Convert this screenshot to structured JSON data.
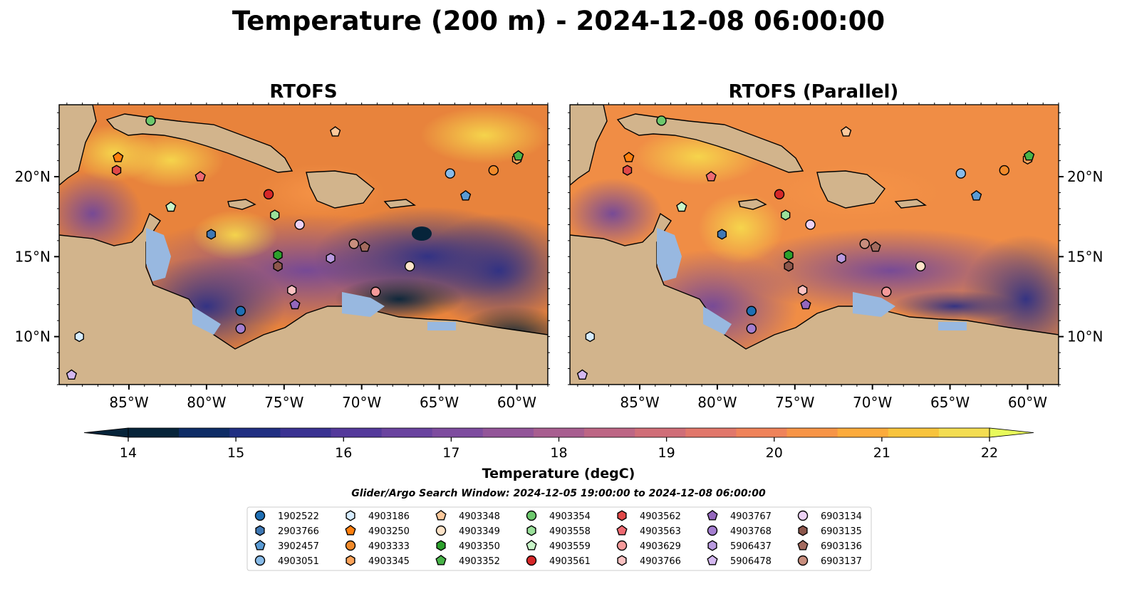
{
  "title": "Temperature (200 m) - 2024-12-08 06:00:00",
  "colorbar": {
    "label": "Temperature (degC)",
    "min": 14,
    "max": 22,
    "step": 0.5,
    "ticks": [
      "14",
      "15",
      "16",
      "17",
      "18",
      "19",
      "20",
      "21",
      "22"
    ],
    "colors": [
      "#06243a",
      "#0e2c66",
      "#202f82",
      "#3a3292",
      "#54399b",
      "#6a439f",
      "#7e4c9f",
      "#935599",
      "#a85e90",
      "#bd6685",
      "#d06e78",
      "#e1776b",
      "#ef835a",
      "#f79547",
      "#fcab3c",
      "#f8c43d",
      "#f3dd52"
    ],
    "under_color": "#06243a",
    "over_color": "#e8fa5b"
  },
  "search_window": "Glider/Argo Search Window: 2024-12-05 19:00:00 to 2024-12-08 06:00:00",
  "colors": {
    "land": "#d2b48c",
    "shelf": "#98b8e0",
    "deep": "#06243a"
  },
  "chart_data": [
    {
      "type": "heatmap",
      "title": "RTOFS",
      "xlim": [
        -89.5,
        -58.0
      ],
      "ylim": [
        7.0,
        24.5
      ],
      "x_ticks": [
        "85°W",
        "80°W",
        "75°W",
        "70°W",
        "65°W",
        "60°W"
      ],
      "y_ticks": [
        "10°N",
        "15°N",
        "20°N"
      ],
      "y_ticks_side": "left",
      "variant": "rtofs"
    },
    {
      "type": "heatmap",
      "title": "RTOFS (Parallel)",
      "xlim": [
        -89.5,
        -58.0
      ],
      "ylim": [
        7.0,
        24.5
      ],
      "x_ticks": [
        "85°W",
        "80°W",
        "75°W",
        "70°W",
        "65°W",
        "60°W"
      ],
      "y_ticks": [
        "10°N",
        "15°N",
        "20°N"
      ],
      "y_ticks_side": "right",
      "variant": "parallel"
    }
  ],
  "platforms": [
    {
      "id": "1902522",
      "marker": "circle",
      "color": "#1f6fb4",
      "lon": -77.8,
      "lat": 11.6
    },
    {
      "id": "2903766",
      "marker": "hexagon",
      "color": "#3f78b4",
      "lon": -79.7,
      "lat": 16.4
    },
    {
      "id": "3902457",
      "marker": "pentagon",
      "color": "#5a9bd4",
      "lon": -63.3,
      "lat": 18.8
    },
    {
      "id": "4903051",
      "marker": "circle",
      "color": "#88bbe8",
      "lon": -64.3,
      "lat": 20.2
    },
    {
      "id": "4903186",
      "marker": "hexagon",
      "color": "#d6ecff",
      "lon": -88.2,
      "lat": 10.0
    },
    {
      "id": "4903250",
      "marker": "pentagon",
      "color": "#ff7f0e",
      "lon": -85.7,
      "lat": 21.2
    },
    {
      "id": "4903333",
      "marker": "circle",
      "color": "#f08a2a",
      "lon": -61.5,
      "lat": 20.4
    },
    {
      "id": "4903345",
      "marker": "hexagon",
      "color": "#fba35a",
      "lon": -60.0,
      "lat": 21.1
    },
    {
      "id": "4903348",
      "marker": "pentagon",
      "color": "#fcc89b",
      "lon": -71.7,
      "lat": 22.8
    },
    {
      "id": "4903349",
      "marker": "circle",
      "color": "#fde3c8",
      "lon": -66.9,
      "lat": 14.4
    },
    {
      "id": "4903350",
      "marker": "hexagon",
      "color": "#2ca02c",
      "lon": -75.4,
      "lat": 15.1
    },
    {
      "id": "4903352",
      "marker": "pentagon",
      "color": "#48b348",
      "lon": -59.9,
      "lat": 21.3
    },
    {
      "id": "4903354",
      "marker": "circle",
      "color": "#6cc86c",
      "lon": -83.6,
      "lat": 23.5
    },
    {
      "id": "4903558",
      "marker": "hexagon",
      "color": "#9ae09a",
      "lon": -75.6,
      "lat": 17.6
    },
    {
      "id": "4903559",
      "marker": "pentagon",
      "color": "#c8f5c8",
      "lon": -82.3,
      "lat": 18.1
    },
    {
      "id": "4903561",
      "marker": "circle",
      "color": "#d62728",
      "lon": -76.0,
      "lat": 18.9
    },
    {
      "id": "4903562",
      "marker": "hexagon",
      "color": "#e04848",
      "lon": -85.8,
      "lat": 20.4
    },
    {
      "id": "4903563",
      "marker": "pentagon",
      "color": "#ef6a72",
      "lon": -80.4,
      "lat": 20.0
    },
    {
      "id": "4903629",
      "marker": "circle",
      "color": "#f59a9a",
      "lon": -69.1,
      "lat": 12.8
    },
    {
      "id": "4903766",
      "marker": "hexagon",
      "color": "#fbc2c2",
      "lon": -74.5,
      "lat": 12.9
    },
    {
      "id": "4903767",
      "marker": "pentagon",
      "color": "#9467bd",
      "lon": -74.3,
      "lat": 12.0
    },
    {
      "id": "4903768",
      "marker": "circle",
      "color": "#a47ed0",
      "lon": -77.8,
      "lat": 10.5
    },
    {
      "id": "5906437",
      "marker": "hexagon",
      "color": "#b99ae0",
      "lon": -72.0,
      "lat": 14.9
    },
    {
      "id": "5906478",
      "marker": "pentagon",
      "color": "#d4b8f0",
      "lon": -88.7,
      "lat": 7.6
    },
    {
      "id": "6903134",
      "marker": "circle",
      "color": "#ecd2f5",
      "lon": -74.0,
      "lat": 17.0
    },
    {
      "id": "6903135",
      "marker": "hexagon",
      "color": "#8c564b",
      "lon": -75.4,
      "lat": 14.4
    },
    {
      "id": "6903136",
      "marker": "pentagon",
      "color": "#a36a5e",
      "lon": -69.8,
      "lat": 15.6
    },
    {
      "id": "6903137",
      "marker": "circle",
      "color": "#c88e7e",
      "lon": -70.5,
      "lat": 15.8
    }
  ]
}
